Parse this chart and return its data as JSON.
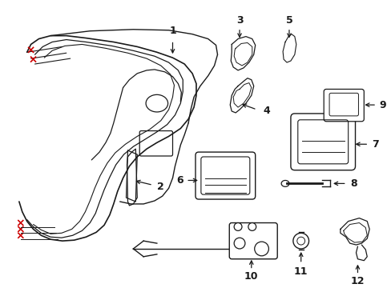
{
  "background_color": "#ffffff",
  "line_color": "#1a1a1a",
  "red_color": "#cc0000",
  "figsize": [
    4.89,
    3.6
  ],
  "dpi": 100
}
